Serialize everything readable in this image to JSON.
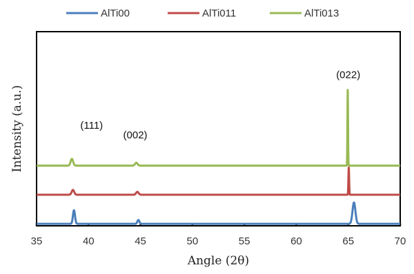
{
  "chart_data": {
    "type": "line",
    "title": "",
    "xlabel": "Angle (2θ)",
    "ylabel": "Intensity (a.u.)",
    "xlim": [
      35,
      70
    ],
    "ylim": [
      0,
      100
    ],
    "x_ticks": [
      35,
      40,
      45,
      50,
      55,
      60,
      65,
      70
    ],
    "grid": false,
    "legend_position": "top",
    "series": [
      {
        "name": "AlTi00",
        "color": "#4a7ebb",
        "baseline": 1,
        "peaks": [
          {
            "x": 38.6,
            "height": 7,
            "width": 0.1
          },
          {
            "x": 44.8,
            "height": 2,
            "width": 0.1
          },
          {
            "x": 65.55,
            "height": 11,
            "width": 0.14
          }
        ]
      },
      {
        "name": "AlTi011",
        "color": "#be4b48",
        "baseline": 16,
        "peaks": [
          {
            "x": 38.5,
            "height": 2.5,
            "width": 0.12
          },
          {
            "x": 44.7,
            "height": 1.5,
            "width": 0.12
          },
          {
            "x": 65.05,
            "height": 14,
            "width": 0.035
          }
        ]
      },
      {
        "name": "AlTi013",
        "color": "#98b954",
        "baseline": 31,
        "peaks": [
          {
            "x": 38.4,
            "height": 3.5,
            "width": 0.12
          },
          {
            "x": 44.6,
            "height": 1.5,
            "width": 0.12
          },
          {
            "x": 64.95,
            "height": 39,
            "width": 0.03
          }
        ]
      }
    ],
    "annotations": [
      {
        "text": "(111)",
        "x": 40.3,
        "y": 50
      },
      {
        "text": "(002)",
        "x": 44.5,
        "y": 45
      },
      {
        "text": "(022)",
        "x": 65.0,
        "y": 76
      }
    ]
  }
}
